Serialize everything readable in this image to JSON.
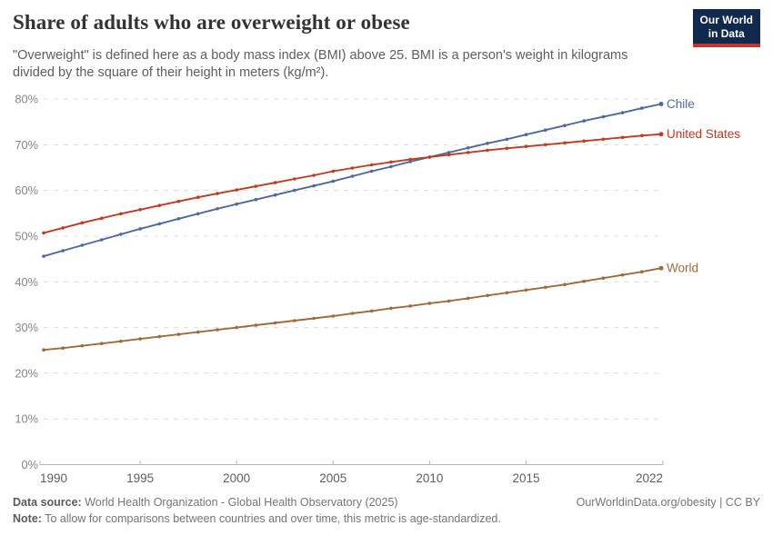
{
  "header": {
    "title": "Share of adults who are overweight or obese",
    "subtitle": "\"Overweight\" is defined here as a body mass index (BMI) above 25. BMI is a person's weight in kilograms divided by the square of their height in meters (kg/m²).",
    "logo_line1": "Our World",
    "logo_line2": "in Data",
    "logo_bg": "#12294E",
    "logo_stripe": "#C63428"
  },
  "chart_data": {
    "type": "line",
    "x": [
      1990,
      1991,
      1992,
      1993,
      1994,
      1995,
      1996,
      1997,
      1998,
      1999,
      2000,
      2001,
      2002,
      2003,
      2004,
      2005,
      2006,
      2007,
      2008,
      2009,
      2010,
      2011,
      2012,
      2013,
      2014,
      2015,
      2016,
      2017,
      2018,
      2019,
      2020,
      2021,
      2022
    ],
    "series": [
      {
        "name": "Chile",
        "color": "#4C6A9C",
        "values": [
          45.6,
          46.8,
          48.0,
          49.2,
          50.4,
          51.6,
          52.7,
          53.8,
          54.9,
          56.0,
          57.0,
          58.0,
          59.0,
          60.0,
          61.0,
          62.0,
          63.1,
          64.2,
          65.2,
          66.3,
          67.3,
          68.3,
          69.3,
          70.3,
          71.2,
          72.2,
          73.2,
          74.2,
          75.2,
          76.1,
          77.0,
          78.0,
          78.9
        ],
        "end_label": "Chile"
      },
      {
        "name": "United States",
        "color": "#BF3B21",
        "values": [
          50.7,
          51.8,
          52.9,
          53.9,
          54.9,
          55.8,
          56.7,
          57.6,
          58.5,
          59.3,
          60.1,
          60.9,
          61.7,
          62.5,
          63.3,
          64.2,
          64.9,
          65.6,
          66.2,
          66.8,
          67.3,
          67.8,
          68.3,
          68.8,
          69.2,
          69.6,
          70.0,
          70.4,
          70.8,
          71.2,
          71.6,
          72.0,
          72.3
        ],
        "end_label": "United States"
      },
      {
        "name": "World",
        "color": "#9E6C3B",
        "values": [
          25.1,
          25.5,
          26.0,
          26.5,
          27.0,
          27.5,
          28.0,
          28.5,
          29.0,
          29.5,
          30.0,
          30.5,
          31.0,
          31.5,
          32.0,
          32.5,
          33.1,
          33.6,
          34.2,
          34.7,
          35.3,
          35.8,
          36.4,
          37.0,
          37.6,
          38.2,
          38.8,
          39.4,
          40.1,
          40.8,
          41.5,
          42.2,
          43.0
        ],
        "end_label": "World"
      }
    ],
    "title": "Share of adults who are overweight or obese",
    "xlabel": "",
    "ylabel": "",
    "xlim": [
      1990,
      2022
    ],
    "ylim": [
      0,
      80
    ],
    "xticks": [
      1990,
      1995,
      2000,
      2005,
      2010,
      2015,
      2022
    ],
    "xtick_labels": [
      "1990",
      "1995",
      "2000",
      "2005",
      "2010",
      "2015",
      "2022"
    ],
    "yticks": [
      0,
      10,
      20,
      30,
      40,
      50,
      60,
      70,
      80
    ],
    "ytick_labels": [
      "0%",
      "10%",
      "20%",
      "30%",
      "40%",
      "50%",
      "60%",
      "70%",
      "80%"
    ],
    "grid": "horizontal-dashed",
    "legend_position": "end-of-line-labels",
    "colors": {
      "grid": "#dcdcdc",
      "axis": "#b5b5b5",
      "xtick_text": "#5f5f5f",
      "ytick_text": "#858585"
    }
  },
  "footer": {
    "datasource_label": "Data source:",
    "datasource_value": " World Health Organization - Global Health Observatory (2025)",
    "note_label": "Note:",
    "note_value": " To allow for comparisons between countries and over time, this metric is age-standardized.",
    "citation": "OurWorldinData.org/obesity | CC BY"
  }
}
